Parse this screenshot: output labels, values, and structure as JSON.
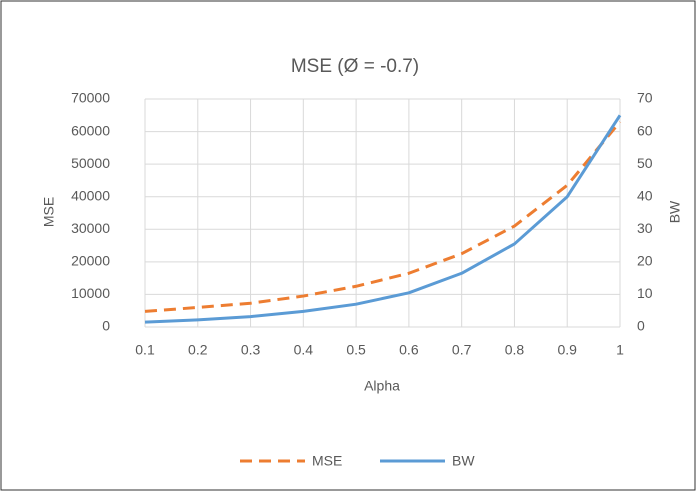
{
  "chart_data": {
    "type": "line",
    "title": "MSE (Ø = -0.7)",
    "x_label": "Alpha",
    "y_label": "MSE",
    "y2_label": "BW",
    "x": [
      0.1,
      0.2,
      0.3,
      0.4,
      0.5,
      0.6,
      0.7,
      0.8,
      0.9,
      1
    ],
    "series": [
      {
        "name": "MSE",
        "color": "#ed7d31",
        "dash": true,
        "values": [
          4800,
          6000,
          7300,
          9500,
          12500,
          16500,
          22500,
          31000,
          43500,
          63000
        ]
      },
      {
        "name": "BW",
        "color": "#5b9bd5",
        "axis": "y2",
        "values": [
          1.5,
          2.2,
          3.2,
          4.8,
          7,
          10.5,
          16.5,
          25.5,
          40,
          65
        ]
      }
    ],
    "xlim": [
      0.1,
      1
    ],
    "xticks": [
      0.1,
      0.2,
      0.3,
      0.4,
      0.5,
      0.6,
      0.7,
      0.8,
      0.9,
      1
    ],
    "ylim": [
      0,
      70000
    ],
    "yticks": [
      0,
      10000,
      20000,
      30000,
      40000,
      50000,
      60000,
      70000
    ],
    "y2lim": [
      0,
      70
    ],
    "y2ticks": [
      0,
      10,
      20,
      30,
      40,
      50,
      60,
      70
    ],
    "grid": true,
    "legend": "bottom"
  }
}
